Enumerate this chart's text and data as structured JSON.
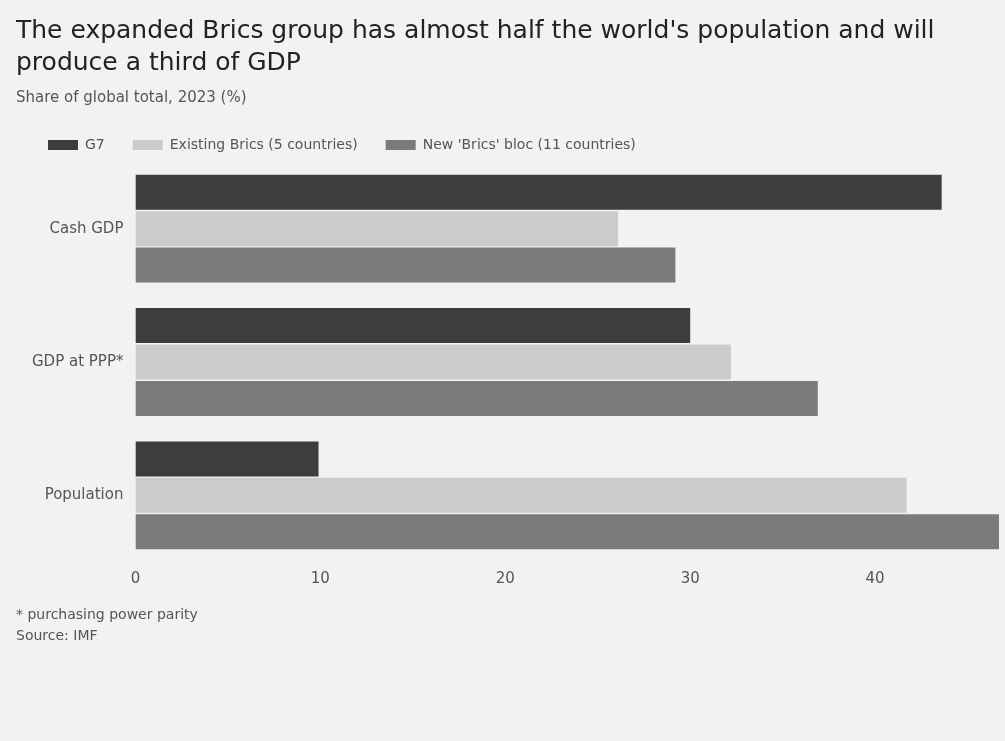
{
  "chart_data": {
    "type": "bar",
    "orientation": "horizontal",
    "title": "The expanded Brics group has almost half the world's population and will produce a third of GDP",
    "subtitle": "Share of global total, 2023 (%)",
    "categories": [
      "Cash GDP",
      "GDP at PPP*",
      "Population"
    ],
    "series": [
      {
        "name": "G7",
        "color": "#3d3d3d",
        "values": [
          43.6,
          30.0,
          9.9
        ]
      },
      {
        "name": "Existing Brics (5 countries)",
        "color": "#cbcbcb",
        "values": [
          26.1,
          32.2,
          41.7
        ]
      },
      {
        "name": "New 'Brics' bloc (11 countries)",
        "color": "#7b7b7b",
        "values": [
          29.2,
          36.9,
          46.7
        ]
      }
    ],
    "xlim": [
      0,
      46.7
    ],
    "xticks": [
      0,
      10,
      20,
      30,
      40
    ],
    "grid": false,
    "legend": "top left",
    "annotations": [
      "* purchasing power parity",
      "Source: IMF"
    ]
  }
}
